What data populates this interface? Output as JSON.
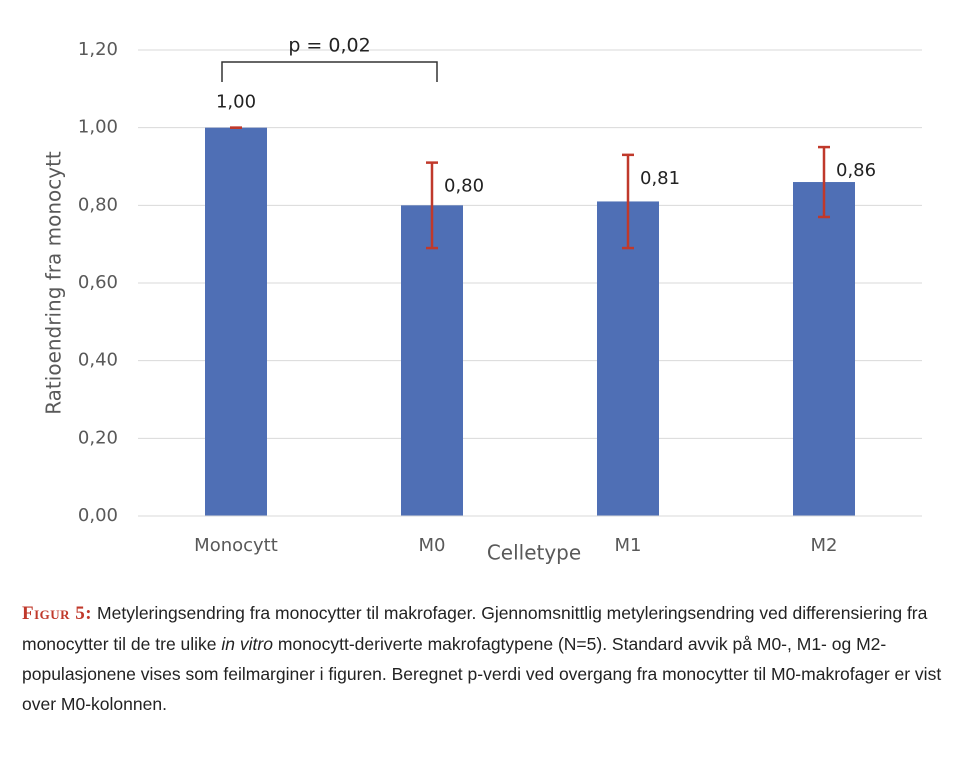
{
  "chart_data": {
    "type": "bar",
    "ylabel": "Ratioendring fra monocytt",
    "xlabel": "Celletype",
    "categories": [
      "Monocytt",
      "M0",
      "M1",
      "M2"
    ],
    "values": [
      1.0,
      0.8,
      0.81,
      0.86
    ],
    "value_labels": [
      "1,00",
      "0,80",
      "0,81",
      "0,86"
    ],
    "errors": [
      0,
      0.11,
      0.12,
      0.09
    ],
    "color": "#4f6fb5",
    "error_color": "#c0392b",
    "ylim": [
      0,
      1.2
    ],
    "yticks": [
      {
        "value": 0,
        "label": "0,00"
      },
      {
        "value": 0.2,
        "label": "0,20"
      },
      {
        "value": 0.4,
        "label": "0,40"
      },
      {
        "value": 0.6,
        "label": "0,60"
      },
      {
        "value": 0.8,
        "label": "0,80"
      },
      {
        "value": 1.0,
        "label": "1,00"
      },
      {
        "value": 1.2,
        "label": "1,20"
      }
    ],
    "grid": true,
    "annotation": "p = 0,02"
  },
  "caption": {
    "label": "Figur 5:",
    "text_before": "Metyleringsendring fra monocytter til makrofager. Gjennomsnittlig metyleringsendring ved differensiering fra monocytter til de tre ulike",
    "text_italic": "in vitro",
    "text_after": "monocytt-deriverte makrofagtypene (N=5). Standard avvik på M0-, M1- og M2-populasjonene vises som feilmarginer i figuren. Beregnet p-verdi ved overgang fra monocytter til M0-makrofager er vist over M0-kolonnen."
  }
}
